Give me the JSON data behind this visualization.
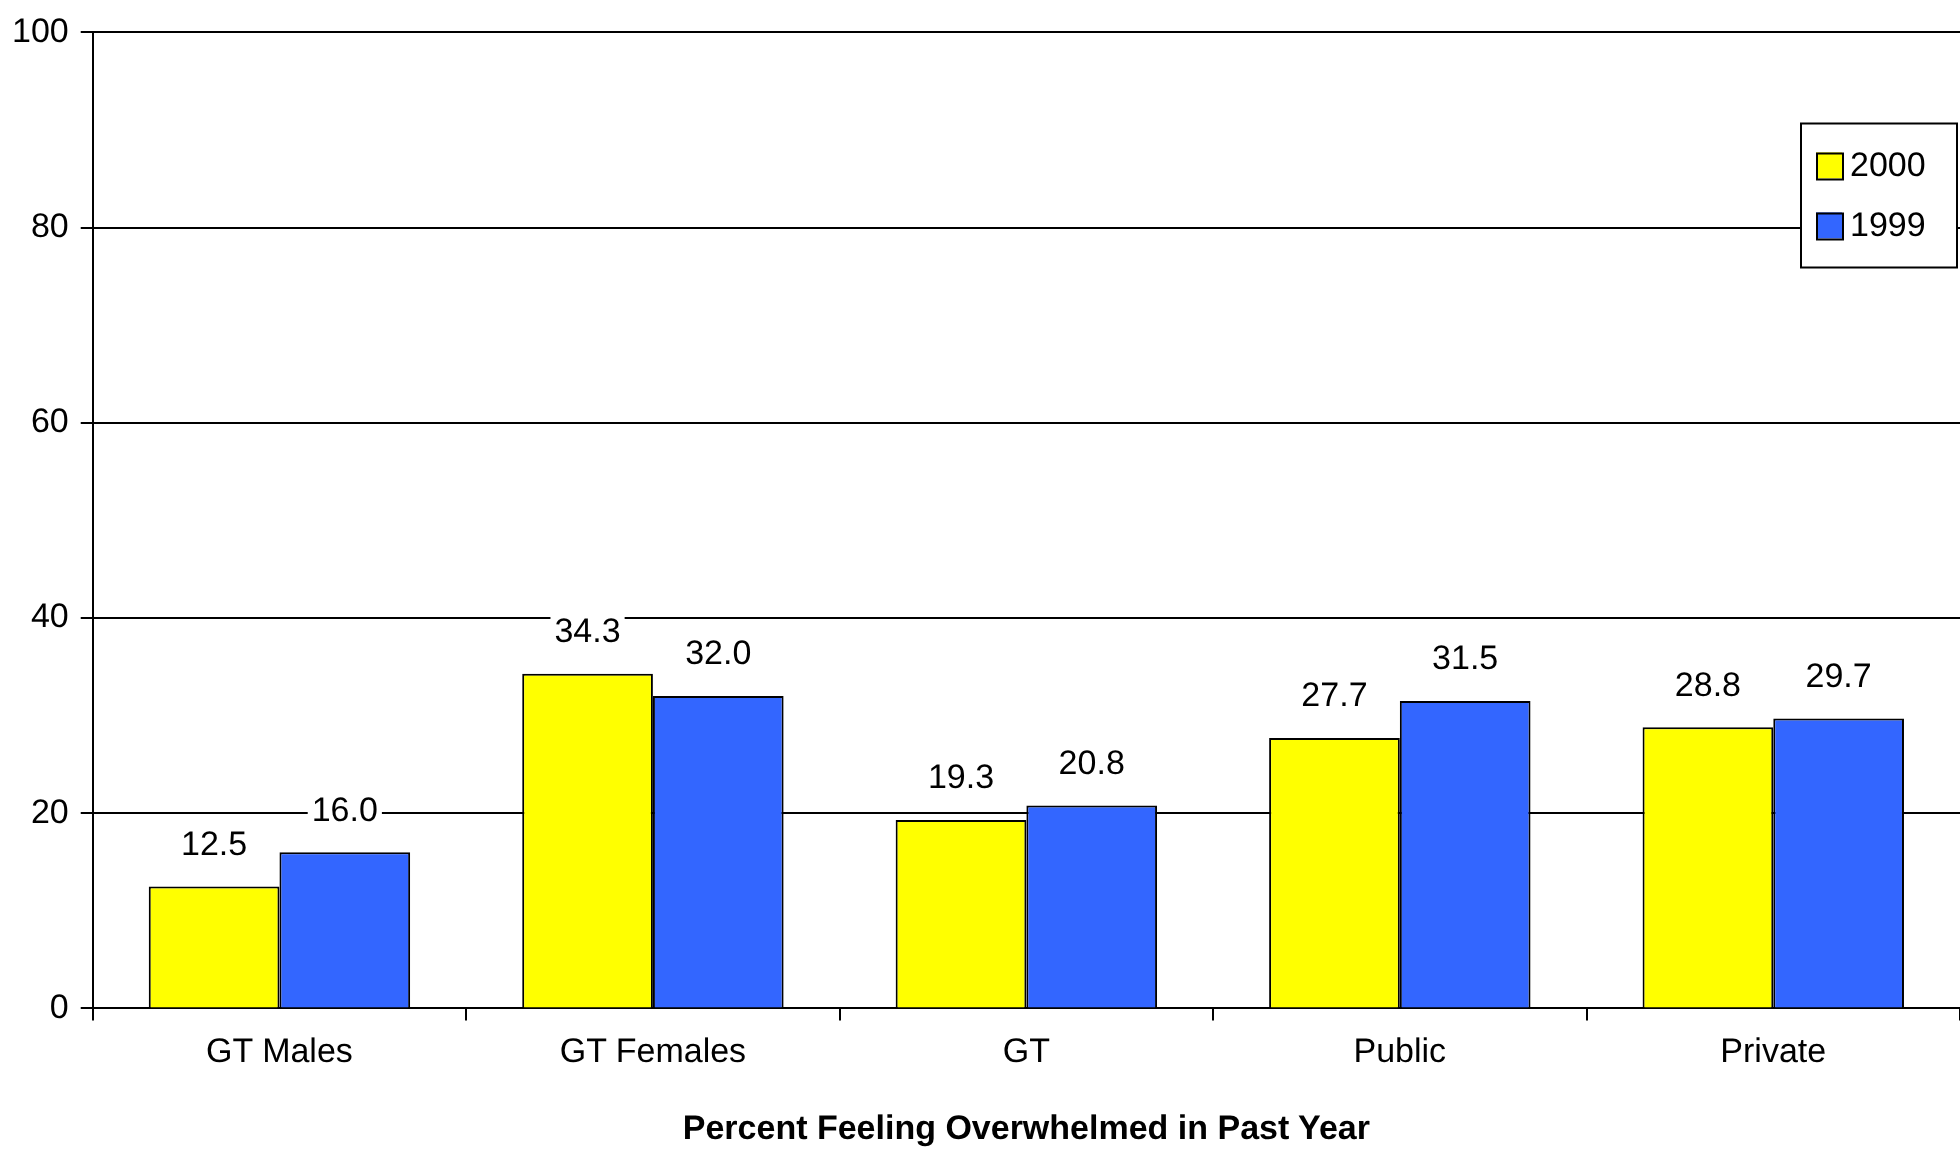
{
  "chart_data": {
    "type": "bar",
    "xlabel": "Percent Feeling Overwhelmed in Past Year",
    "categories": [
      "GT Males",
      "GT Females",
      "GT",
      "Public",
      "Private"
    ],
    "series": [
      {
        "name": "2000",
        "color": "#ffff00",
        "values": [
          12.5,
          34.3,
          19.3,
          27.7,
          28.8
        ],
        "value_labels": [
          "12.5",
          "34.3",
          "19.3",
          "27.7",
          "28.8"
        ]
      },
      {
        "name": "1999",
        "color": "#3366ff",
        "values": [
          16.0,
          32.0,
          20.8,
          31.5,
          29.7
        ],
        "value_labels": [
          "16.0",
          "32.0",
          "20.8",
          "31.5",
          "29.7"
        ]
      }
    ],
    "ylim": [
      0,
      100
    ],
    "yticks": [
      0,
      20,
      40,
      60,
      80,
      100
    ],
    "grid": "y",
    "legend": "top right"
  }
}
